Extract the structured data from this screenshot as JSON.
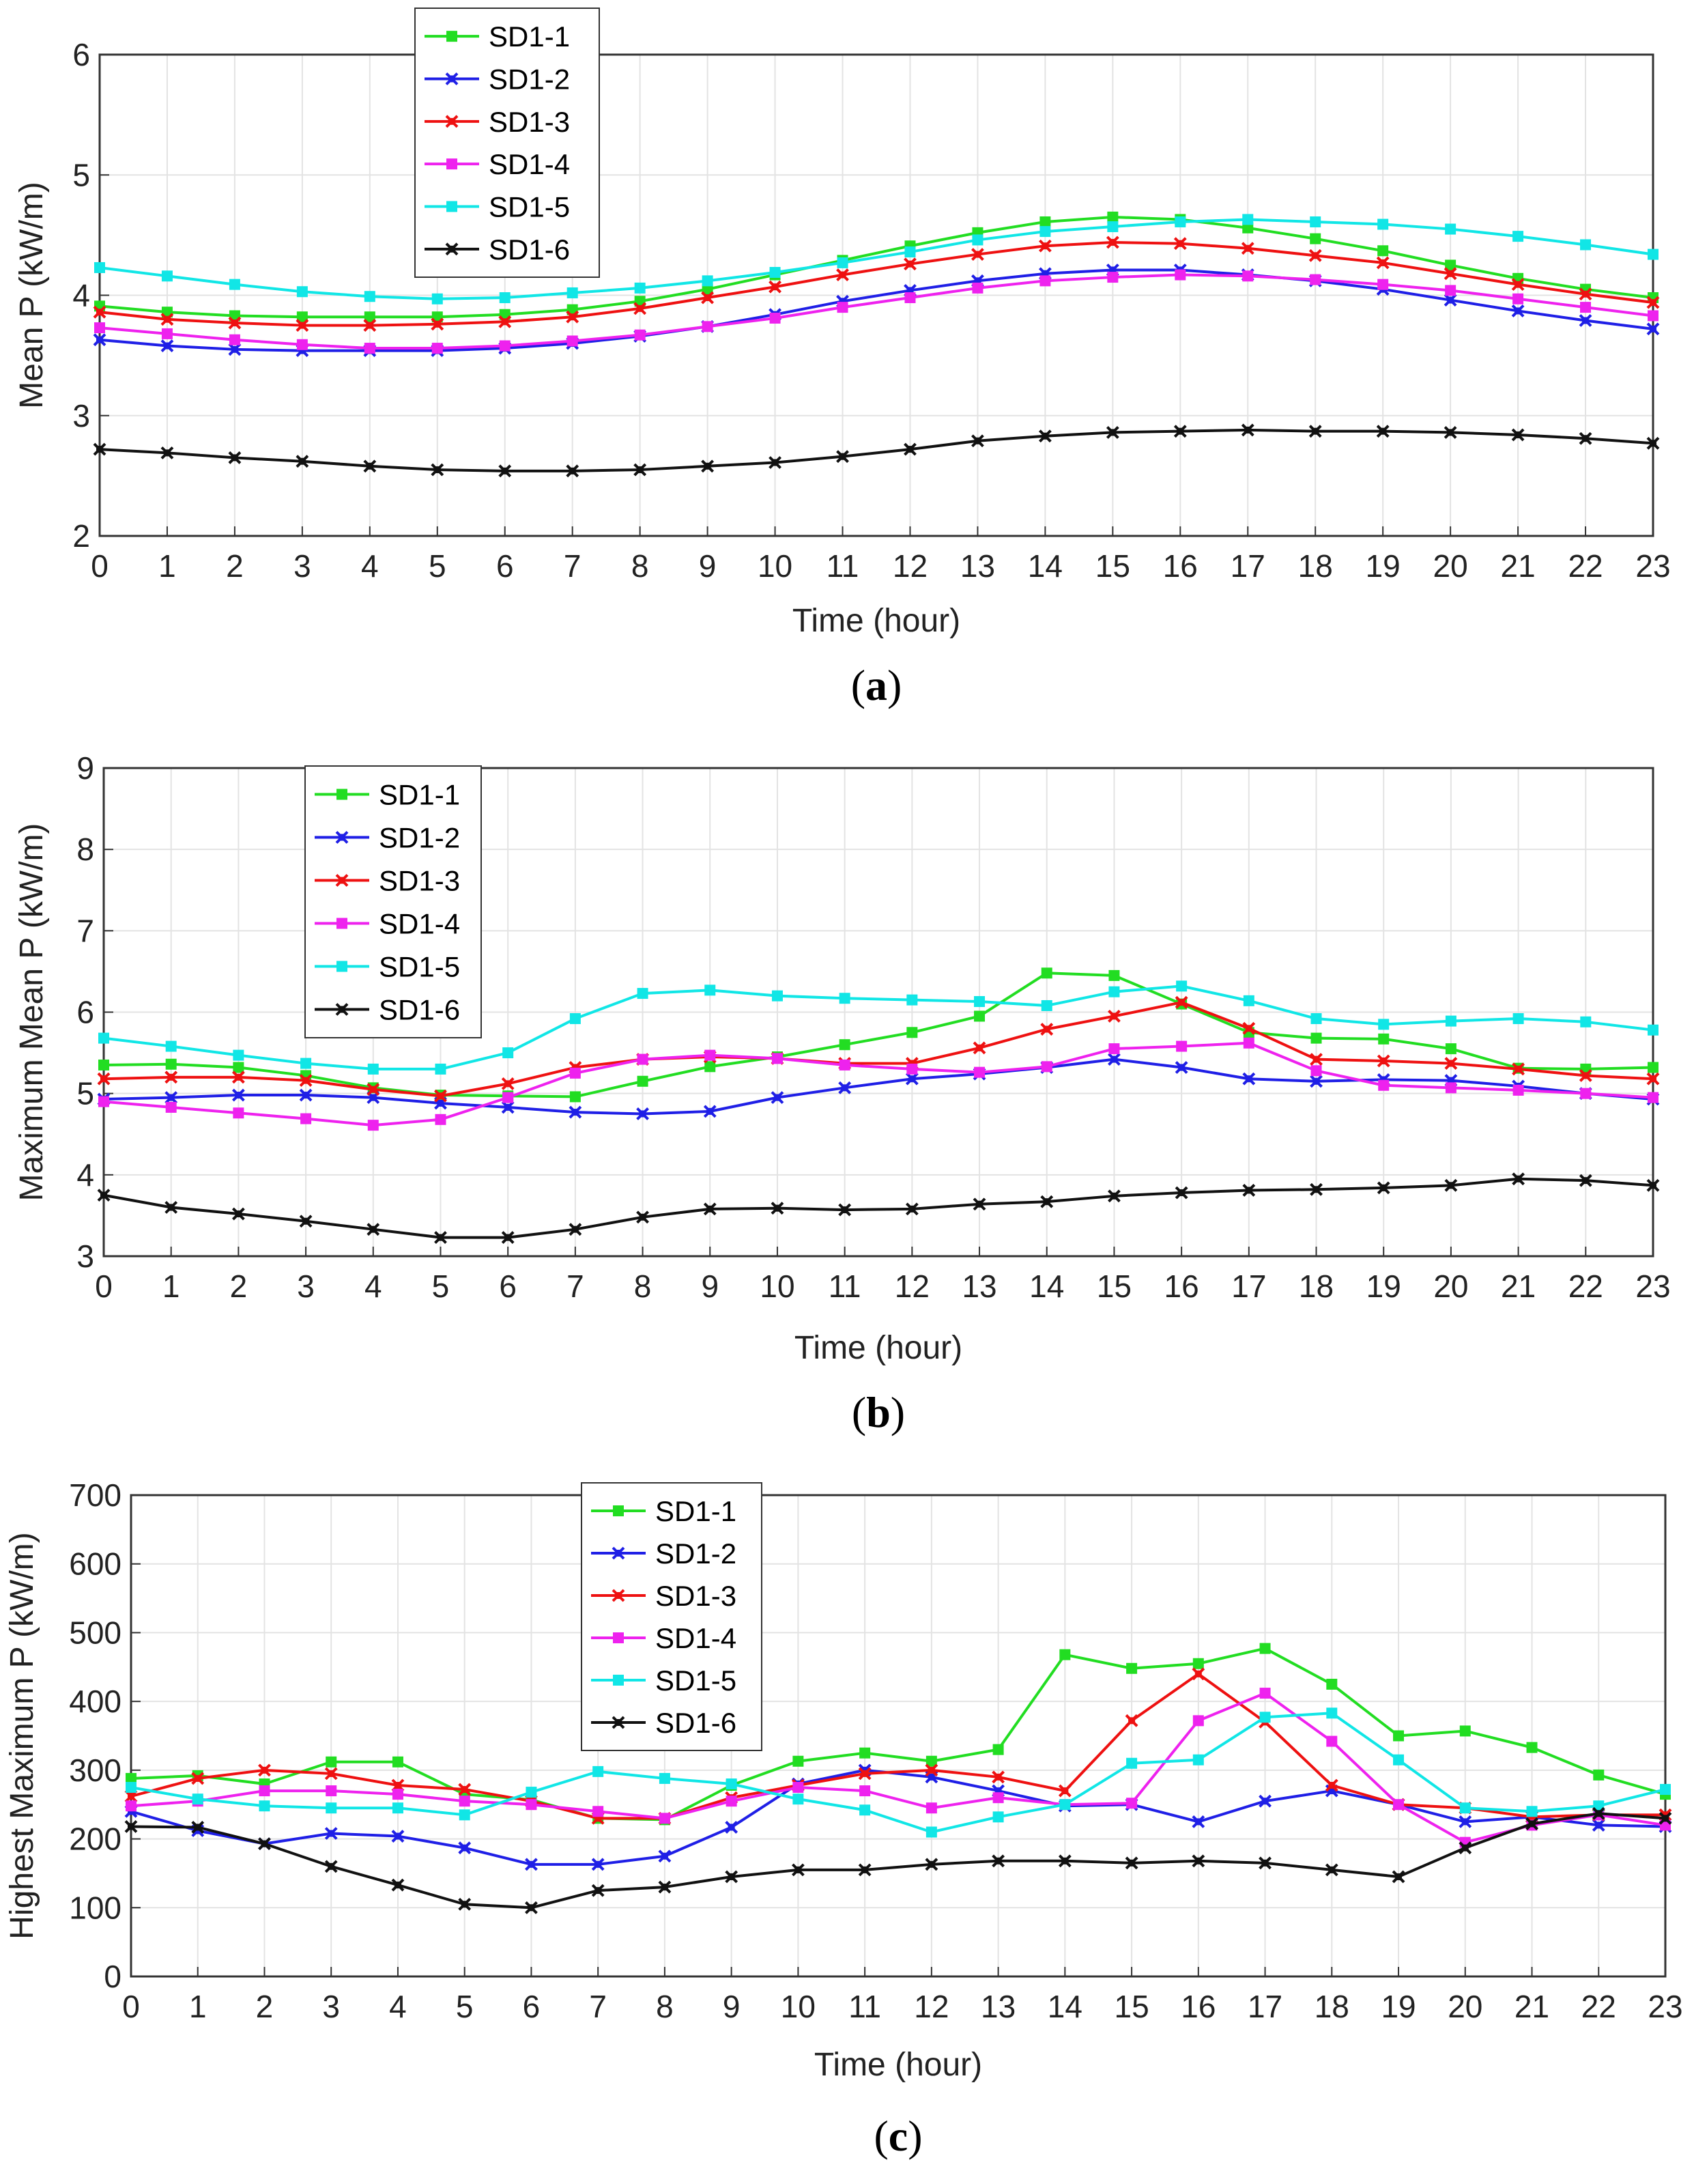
{
  "colors": {
    "SD1-1": "#22dd22",
    "SD1-2": "#1f1fe6",
    "SD1-3": "#ee1111",
    "SD1-4": "#ee22ee",
    "SD1-5": "#11e6e6",
    "SD1-6": "#111111"
  },
  "chart_data": [
    {
      "type": "line",
      "caption_letter": "a",
      "caption_open": "(",
      "caption_close": ")",
      "xlabel": "Time (hour)",
      "ylabel": "Mean P (kW/m)",
      "x": [
        0,
        1,
        2,
        3,
        4,
        5,
        6,
        7,
        8,
        9,
        10,
        11,
        12,
        13,
        14,
        15,
        16,
        17,
        18,
        19,
        20,
        21,
        22,
        23
      ],
      "ylim": [
        2,
        6
      ],
      "yticks": [
        2,
        3,
        4,
        5,
        6
      ],
      "legend_position": "top-center",
      "grid": true,
      "series": [
        {
          "name": "SD1-1",
          "values": [
            3.91,
            3.86,
            3.83,
            3.82,
            3.82,
            3.82,
            3.84,
            3.88,
            3.95,
            4.05,
            4.17,
            4.29,
            4.41,
            4.52,
            4.61,
            4.65,
            4.63,
            4.56,
            4.47,
            4.37,
            4.25,
            4.14,
            4.05,
            3.98
          ]
        },
        {
          "name": "SD1-2",
          "values": [
            3.63,
            3.58,
            3.55,
            3.54,
            3.54,
            3.54,
            3.56,
            3.6,
            3.66,
            3.74,
            3.84,
            3.95,
            4.04,
            4.12,
            4.18,
            4.21,
            4.21,
            4.17,
            4.12,
            4.05,
            3.96,
            3.87,
            3.79,
            3.72
          ]
        },
        {
          "name": "SD1-3",
          "values": [
            3.86,
            3.8,
            3.77,
            3.75,
            3.75,
            3.76,
            3.78,
            3.82,
            3.89,
            3.98,
            4.07,
            4.17,
            4.26,
            4.34,
            4.41,
            4.44,
            4.43,
            4.39,
            4.33,
            4.27,
            4.18,
            4.09,
            4.01,
            3.94
          ]
        },
        {
          "name": "SD1-4",
          "values": [
            3.73,
            3.68,
            3.63,
            3.59,
            3.56,
            3.56,
            3.58,
            3.62,
            3.67,
            3.74,
            3.81,
            3.9,
            3.98,
            4.06,
            4.12,
            4.15,
            4.17,
            4.16,
            4.13,
            4.09,
            4.04,
            3.97,
            3.9,
            3.83
          ]
        },
        {
          "name": "SD1-5",
          "values": [
            4.23,
            4.16,
            4.09,
            4.03,
            3.99,
            3.97,
            3.98,
            4.02,
            4.06,
            4.12,
            4.19,
            4.27,
            4.36,
            4.46,
            4.53,
            4.57,
            4.61,
            4.63,
            4.61,
            4.59,
            4.55,
            4.49,
            4.42,
            4.34
          ]
        },
        {
          "name": "SD1-6",
          "values": [
            2.72,
            2.69,
            2.65,
            2.62,
            2.58,
            2.55,
            2.54,
            2.54,
            2.55,
            2.58,
            2.61,
            2.66,
            2.72,
            2.79,
            2.83,
            2.86,
            2.87,
            2.88,
            2.87,
            2.87,
            2.86,
            2.84,
            2.81,
            2.77
          ]
        }
      ]
    },
    {
      "type": "line",
      "caption_letter": "b",
      "caption_open": "(",
      "caption_close": ")",
      "xlabel": "Time (hour)",
      "ylabel": "Maximum Mean P (kW/m)",
      "x": [
        0,
        1,
        2,
        3,
        4,
        5,
        6,
        7,
        8,
        9,
        10,
        11,
        12,
        13,
        14,
        15,
        16,
        17,
        18,
        19,
        20,
        21,
        22,
        23
      ],
      "ylim": [
        3,
        9
      ],
      "yticks": [
        3,
        4,
        5,
        6,
        7,
        8,
        9
      ],
      "legend_position": "top-left",
      "grid": true,
      "series": [
        {
          "name": "SD1-1",
          "values": [
            5.35,
            5.36,
            5.32,
            5.22,
            5.07,
            4.98,
            4.97,
            4.96,
            5.15,
            5.33,
            5.45,
            5.6,
            5.75,
            5.95,
            6.48,
            6.45,
            6.1,
            5.75,
            5.68,
            5.67,
            5.55,
            5.31,
            5.3,
            5.32
          ]
        },
        {
          "name": "SD1-2",
          "values": [
            4.93,
            4.95,
            4.98,
            4.98,
            4.95,
            4.88,
            4.83,
            4.77,
            4.75,
            4.78,
            4.95,
            5.07,
            5.18,
            5.24,
            5.32,
            5.42,
            5.32,
            5.18,
            5.15,
            5.17,
            5.16,
            5.09,
            5.0,
            4.93
          ]
        },
        {
          "name": "SD1-3",
          "values": [
            5.18,
            5.2,
            5.2,
            5.16,
            5.05,
            4.97,
            5.12,
            5.32,
            5.42,
            5.45,
            5.43,
            5.37,
            5.37,
            5.56,
            5.79,
            5.95,
            6.12,
            5.8,
            5.42,
            5.4,
            5.37,
            5.3,
            5.22,
            5.18
          ]
        },
        {
          "name": "SD1-4",
          "values": [
            4.9,
            4.83,
            4.76,
            4.69,
            4.61,
            4.68,
            4.95,
            5.25,
            5.42,
            5.47,
            5.43,
            5.35,
            5.3,
            5.26,
            5.33,
            5.55,
            5.58,
            5.62,
            5.28,
            5.1,
            5.07,
            5.04,
            5.0,
            4.95
          ]
        },
        {
          "name": "SD1-5",
          "values": [
            5.68,
            5.58,
            5.47,
            5.37,
            5.3,
            5.3,
            5.5,
            5.92,
            6.23,
            6.27,
            6.2,
            6.17,
            6.15,
            6.13,
            6.08,
            6.25,
            6.32,
            6.14,
            5.92,
            5.85,
            5.89,
            5.92,
            5.88,
            5.78
          ]
        },
        {
          "name": "SD1-6",
          "values": [
            3.75,
            3.6,
            3.52,
            3.43,
            3.33,
            3.23,
            3.23,
            3.33,
            3.48,
            3.58,
            3.59,
            3.57,
            3.58,
            3.64,
            3.67,
            3.74,
            3.78,
            3.81,
            3.82,
            3.84,
            3.87,
            3.95,
            3.93,
            3.87
          ]
        }
      ]
    },
    {
      "type": "line",
      "caption_letter": "c",
      "caption_open": "(",
      "caption_close": ")",
      "xlabel": "Time (hour)",
      "ylabel": "Highest Maximum P (kW/m)",
      "x": [
        0,
        1,
        2,
        3,
        4,
        5,
        6,
        7,
        8,
        9,
        10,
        11,
        12,
        13,
        14,
        15,
        16,
        17,
        18,
        19,
        20,
        21,
        22,
        23
      ],
      "ylim": [
        0,
        700
      ],
      "yticks": [
        0,
        100,
        200,
        300,
        400,
        500,
        600,
        700
      ],
      "legend_position": "top-center",
      "grid": true,
      "series": [
        {
          "name": "SD1-1",
          "values": [
            288,
            292,
            280,
            312,
            312,
            265,
            257,
            230,
            228,
            278,
            313,
            325,
            313,
            330,
            468,
            448,
            455,
            477,
            425,
            350,
            357,
            333,
            293,
            265
          ]
        },
        {
          "name": "SD1-2",
          "values": [
            240,
            212,
            193,
            208,
            204,
            187,
            163,
            163,
            175,
            217,
            280,
            300,
            290,
            270,
            248,
            250,
            225,
            255,
            270,
            250,
            225,
            232,
            220,
            218
          ]
        },
        {
          "name": "SD1-3",
          "values": [
            262,
            288,
            300,
            295,
            278,
            272,
            255,
            230,
            230,
            260,
            278,
            295,
            300,
            290,
            270,
            372,
            440,
            370,
            278,
            250,
            245,
            232,
            235,
            235
          ]
        },
        {
          "name": "SD1-4",
          "values": [
            248,
            255,
            270,
            270,
            265,
            255,
            250,
            240,
            230,
            255,
            275,
            270,
            245,
            260,
            250,
            252,
            372,
            412,
            342,
            250,
            195,
            220,
            235,
            220
          ]
        },
        {
          "name": "SD1-5",
          "values": [
            275,
            258,
            248,
            245,
            245,
            235,
            268,
            298,
            288,
            280,
            258,
            242,
            210,
            232,
            250,
            310,
            315,
            377,
            383,
            315,
            245,
            240,
            248,
            272
          ]
        },
        {
          "name": "SD1-6",
          "values": [
            218,
            217,
            193,
            160,
            133,
            105,
            100,
            125,
            130,
            145,
            155,
            155,
            163,
            168,
            168,
            165,
            168,
            165,
            155,
            145,
            187,
            222,
            237,
            230
          ]
        }
      ]
    }
  ]
}
